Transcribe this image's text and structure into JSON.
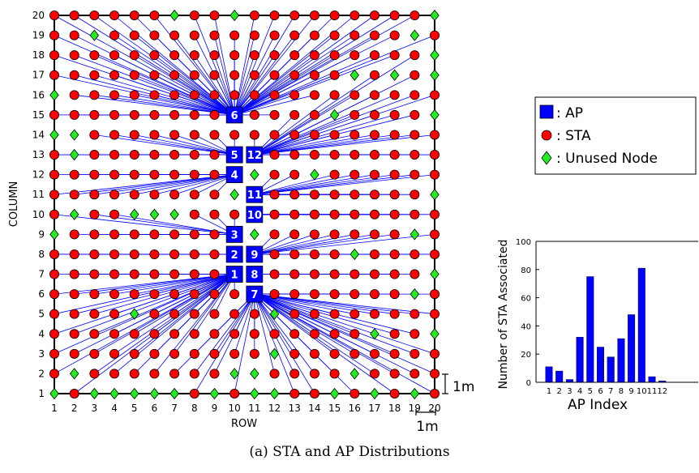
{
  "caption": "(a) STA and AP Distributions",
  "legend": {
    "items": [
      {
        "symbol": "square",
        "color": "#0000ff",
        "label": ": AP"
      },
      {
        "symbol": "circle",
        "color": "#ff0000",
        "label": ": STA"
      },
      {
        "symbol": "diamond",
        "color": "#22ee22",
        "label": ": Unused Node"
      }
    ]
  },
  "scale_label_x": "1m",
  "scale_label_y": "1m",
  "chart_data": [
    {
      "type": "scatter",
      "title": "",
      "xlabel": "ROW",
      "ylabel": "COLUMN",
      "xlim": [
        1,
        20
      ],
      "ylim": [
        1,
        20
      ],
      "x_ticks": [
        "1",
        "2",
        "3",
        "4",
        "5",
        "6",
        "7",
        "8",
        "9",
        "10",
        "11",
        "12",
        "13",
        "14",
        "15",
        "16",
        "17",
        "18",
        "19",
        "20"
      ],
      "y_ticks": [
        "1",
        "2",
        "3",
        "4",
        "5",
        "6",
        "7",
        "8",
        "9",
        "10",
        "11",
        "12",
        "13",
        "14",
        "15",
        "16",
        "17",
        "18",
        "19",
        "20"
      ],
      "link_color": "#0000ff",
      "aps": [
        {
          "id": "1",
          "x": 10,
          "y": 7
        },
        {
          "id": "2",
          "x": 10,
          "y": 8
        },
        {
          "id": "3",
          "x": 10,
          "y": 9
        },
        {
          "id": "4",
          "x": 10,
          "y": 12
        },
        {
          "id": "5",
          "x": 10,
          "y": 13
        },
        {
          "id": "6",
          "x": 10,
          "y": 15
        },
        {
          "id": "7",
          "x": 11,
          "y": 6
        },
        {
          "id": "8",
          "x": 11,
          "y": 7
        },
        {
          "id": "9",
          "x": 11,
          "y": 8
        },
        {
          "id": "10",
          "x": 11,
          "y": 10
        },
        {
          "id": "11",
          "x": 11,
          "y": 11
        },
        {
          "id": "12",
          "x": 11,
          "y": 13
        }
      ],
      "unused_nodes": [
        [
          7,
          20
        ],
        [
          10,
          20
        ],
        [
          20,
          20
        ],
        [
          3,
          19
        ],
        [
          19,
          19
        ],
        [
          20,
          18
        ],
        [
          16,
          17
        ],
        [
          18,
          17
        ],
        [
          20,
          17
        ],
        [
          1,
          16
        ],
        [
          15,
          15
        ],
        [
          20,
          15
        ],
        [
          1,
          14
        ],
        [
          2,
          14
        ],
        [
          2,
          13
        ],
        [
          11,
          12
        ],
        [
          14,
          12
        ],
        [
          10,
          11
        ],
        [
          20,
          11
        ],
        [
          2,
          10
        ],
        [
          5,
          10
        ],
        [
          6,
          10
        ],
        [
          7,
          10
        ],
        [
          1,
          9
        ],
        [
          11,
          9
        ],
        [
          19,
          9
        ],
        [
          16,
          8
        ],
        [
          20,
          7
        ],
        [
          19,
          6
        ],
        [
          5,
          5
        ],
        [
          12,
          5
        ],
        [
          17,
          4
        ],
        [
          20,
          4
        ],
        [
          12,
          3
        ],
        [
          2,
          2
        ],
        [
          10,
          2
        ],
        [
          11,
          2
        ],
        [
          16,
          2
        ],
        [
          1,
          1
        ],
        [
          3,
          1
        ],
        [
          4,
          1
        ],
        [
          5,
          1
        ],
        [
          6,
          1
        ],
        [
          7,
          1
        ],
        [
          9,
          1
        ],
        [
          11,
          1
        ],
        [
          12,
          1
        ],
        [
          15,
          1
        ],
        [
          17,
          1
        ],
        [
          19,
          1
        ]
      ]
    },
    {
      "type": "bar",
      "title": "",
      "xlabel": "AP Index",
      "ylabel": "Number of STA Associated",
      "categories": [
        "1",
        "2",
        "3",
        "4",
        "5",
        "6",
        "7",
        "8",
        "9",
        "10",
        "11",
        "12"
      ],
      "values": [
        11,
        8,
        2,
        32,
        75,
        25,
        18,
        31,
        48,
        81,
        4,
        1
      ],
      "ylim": [
        0,
        100
      ],
      "y_ticks": [
        "0",
        "20",
        "40",
        "60",
        "80",
        "100"
      ],
      "bar_color": "#0000ff"
    }
  ]
}
